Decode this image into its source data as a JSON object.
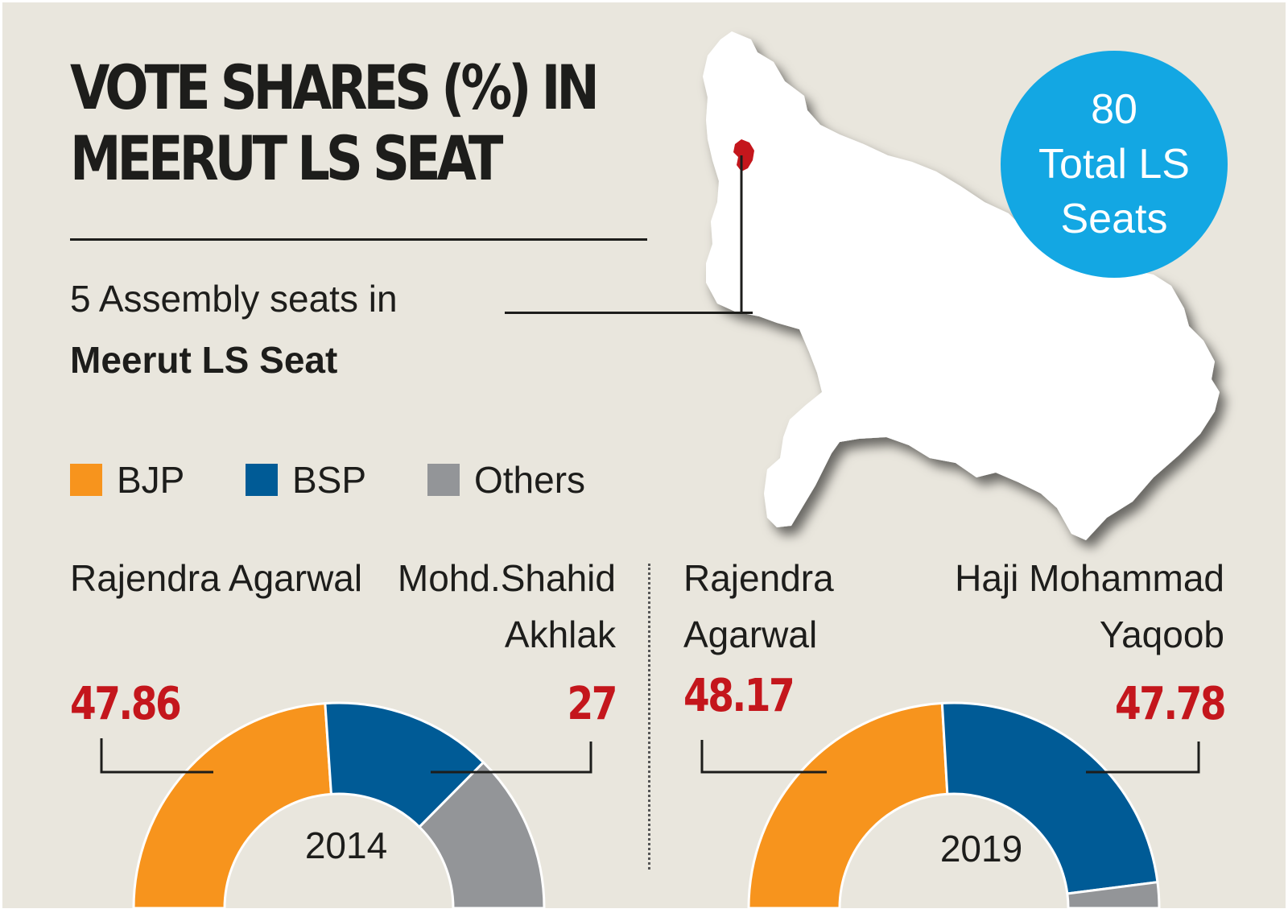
{
  "header": {
    "title_line1": "VOTE SHARES (%) IN",
    "title_line2": "MEERUT LS SEAT",
    "subtitle_line1": "5 Assembly seats in",
    "subtitle_line2": "Meerut LS Seat"
  },
  "badge": {
    "number": "80",
    "line2": "Total LS",
    "line3": "Seats"
  },
  "legend": [
    {
      "label": "BJP",
      "color": "#f7941d"
    },
    {
      "label": "BSP",
      "color": "#005b96"
    },
    {
      "label": "Others",
      "color": "#939598"
    }
  ],
  "chart_data": [
    {
      "type": "pie",
      "variant": "half-donut",
      "year": "2014",
      "categories": [
        "BJP",
        "BSP",
        "Others"
      ],
      "values": [
        47.86,
        27,
        25.14
      ],
      "colors": [
        "#f7941d",
        "#005b96",
        "#939598"
      ],
      "annotations": [
        {
          "name": "Rajendra Agarwal",
          "value": "47.86",
          "party": "BJP"
        },
        {
          "name": "Mohd.Shahid\nAkhlak",
          "value": "27",
          "party": "BSP"
        }
      ]
    },
    {
      "type": "pie",
      "variant": "half-donut",
      "year": "2019",
      "categories": [
        "BJP",
        "BSP",
        "Others"
      ],
      "values": [
        48.17,
        47.78,
        4.05
      ],
      "colors": [
        "#f7941d",
        "#005b96",
        "#939598"
      ],
      "annotations": [
        {
          "name": "Rajendra\nAgarwal",
          "value": "48.17",
          "party": "BJP"
        },
        {
          "name": "Haji Mohammad\nYaqoob",
          "value": "47.78",
          "party": "BSP"
        }
      ]
    }
  ]
}
